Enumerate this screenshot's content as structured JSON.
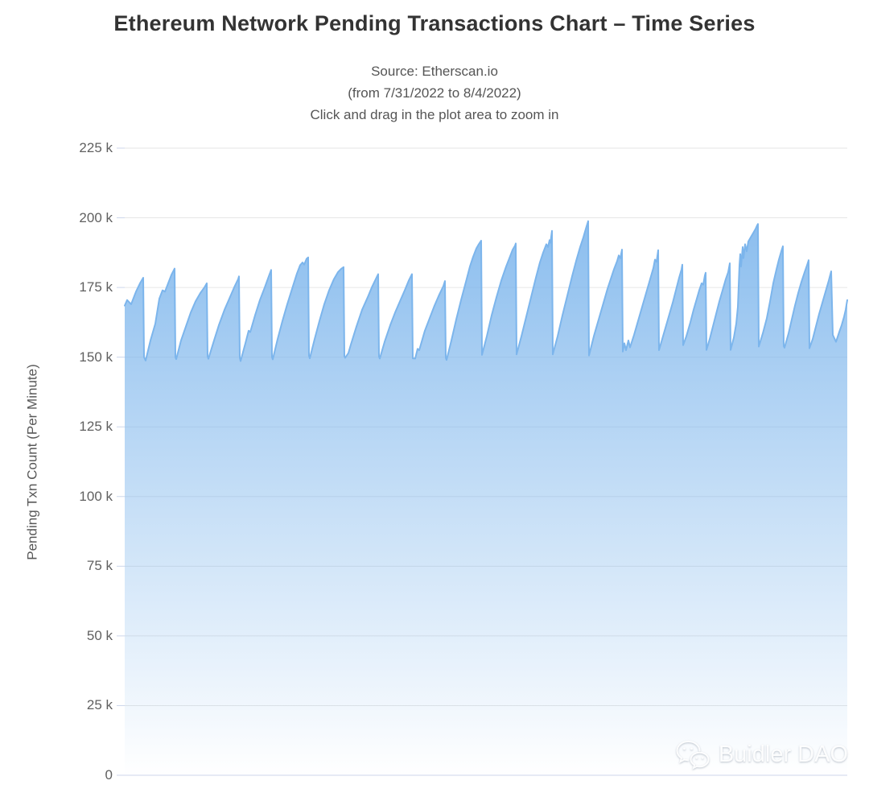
{
  "header": {
    "title": "Ethereum Network Pending Transactions Chart – Time Series",
    "subtitle_lines": [
      "Source: Etherscan.io",
      "(from 7/31/2022 to 8/4/2022)",
      "Click and drag in the plot area to zoom in"
    ]
  },
  "watermark": {
    "label": "Buidler DAO",
    "icon": "wechat-icon"
  },
  "colors": {
    "series": "#7cb5ec",
    "grid": "#e6e6e6",
    "axis_line": "#ccd6eb",
    "tick": "#ccd6eb",
    "title_text": "#333333",
    "subtitle_text": "#555555",
    "label_text": "#606060"
  },
  "chart_data": {
    "type": "area",
    "title": "Ethereum Network Pending Transactions Chart – Time Series",
    "subtitle": "Source: Etherscan.io (from 7/31/2022 to 8/4/2022) Click and drag in the plot area to zoom in",
    "xlabel": "",
    "ylabel": "Pending Txn Count (Per Minute)",
    "x_range": {
      "from": "7/31/2022",
      "to": "8/4/2022"
    },
    "x_unit": "time, axis unlabeled; point x = horizontal plot offset 0-898",
    "y_unit": "thousands of pending transactions",
    "ylim_k": [
      0,
      225
    ],
    "grid": "horizontal",
    "legend": "none",
    "yticks": [
      {
        "v": 0,
        "label": "0"
      },
      {
        "v": 25,
        "label": "25 k"
      },
      {
        "v": 50,
        "label": "50 k"
      },
      {
        "v": 75,
        "label": "75 k"
      },
      {
        "v": 100,
        "label": "100 k"
      },
      {
        "v": 125,
        "label": "125 k"
      },
      {
        "v": 150,
        "label": "150 k"
      },
      {
        "v": 175,
        "label": "175 k"
      },
      {
        "v": 200,
        "label": "200 k"
      },
      {
        "v": 225,
        "label": "225 k"
      }
    ],
    "series": [
      {
        "name": "Pending Txn Count",
        "color": "#7cb5ec",
        "fill_gradient_top": "rgba(124,181,236,1)",
        "fill_gradient_bottom": "rgba(124,181,236,0)",
        "points": [
          [
            0,
            168.5
          ],
          [
            3,
            170.5
          ],
          [
            8,
            169
          ],
          [
            14,
            173.5
          ],
          [
            19,
            176.5
          ],
          [
            23,
            178.5
          ],
          [
            24,
            150
          ],
          [
            26,
            148.8
          ],
          [
            32,
            156
          ],
          [
            38,
            162
          ],
          [
            43,
            171
          ],
          [
            47,
            174
          ],
          [
            50,
            173.5
          ],
          [
            54,
            176.5
          ],
          [
            58,
            179.5
          ],
          [
            62,
            181.8
          ],
          [
            63,
            150
          ],
          [
            64,
            149.3
          ],
          [
            70,
            156
          ],
          [
            76,
            161
          ],
          [
            82,
            166
          ],
          [
            88,
            170
          ],
          [
            94,
            173
          ],
          [
            99,
            175
          ],
          [
            102,
            176.5
          ],
          [
            103,
            150.3
          ],
          [
            104,
            149.4
          ],
          [
            111,
            156
          ],
          [
            117,
            161.5
          ],
          [
            124,
            167
          ],
          [
            130,
            171
          ],
          [
            136,
            175
          ],
          [
            141,
            178
          ],
          [
            142,
            179
          ],
          [
            143,
            149.8
          ],
          [
            144,
            148.6
          ],
          [
            150,
            155
          ],
          [
            154,
            159.5
          ],
          [
            156,
            159
          ],
          [
            162,
            165
          ],
          [
            168,
            170.5
          ],
          [
            174,
            175
          ],
          [
            179,
            179
          ],
          [
            182,
            181.3
          ],
          [
            183,
            150
          ],
          [
            184,
            149.2
          ],
          [
            190,
            156.5
          ],
          [
            196,
            163
          ],
          [
            202,
            169
          ],
          [
            208,
            174.5
          ],
          [
            214,
            180
          ],
          [
            218,
            183
          ],
          [
            221,
            184
          ],
          [
            223,
            183.2
          ],
          [
            226,
            185.3
          ],
          [
            228,
            185.8
          ],
          [
            229,
            150.5
          ],
          [
            230,
            149.6
          ],
          [
            236,
            156.5
          ],
          [
            242,
            163
          ],
          [
            248,
            169
          ],
          [
            254,
            174
          ],
          [
            260,
            178
          ],
          [
            265,
            180.5
          ],
          [
            269,
            181.7
          ],
          [
            272,
            182.3
          ],
          [
            273,
            150.4
          ],
          [
            274,
            149.8
          ],
          [
            278,
            151.5
          ],
          [
            281,
            154.5
          ],
          [
            288,
            161
          ],
          [
            295,
            167
          ],
          [
            302,
            171.5
          ],
          [
            307,
            175
          ],
          [
            312,
            178
          ],
          [
            315,
            179.8
          ],
          [
            316,
            150.2
          ],
          [
            317,
            149.5
          ],
          [
            323,
            155.5
          ],
          [
            330,
            161.5
          ],
          [
            336,
            166
          ],
          [
            342,
            170
          ],
          [
            348,
            174
          ],
          [
            353,
            177.5
          ],
          [
            357,
            179.8
          ],
          [
            358,
            149.6
          ],
          [
            361,
            149.5
          ],
          [
            364,
            153
          ],
          [
            366,
            152.5
          ],
          [
            373,
            159.5
          ],
          [
            379,
            164
          ],
          [
            385,
            168.5
          ],
          [
            391,
            172.5
          ],
          [
            396,
            175.5
          ],
          [
            398,
            177.3
          ],
          [
            399,
            149.8
          ],
          [
            400,
            149
          ],
          [
            406,
            156
          ],
          [
            412,
            163.5
          ],
          [
            418,
            170.5
          ],
          [
            424,
            177
          ],
          [
            429,
            182.5
          ],
          [
            433,
            186
          ],
          [
            437,
            189
          ],
          [
            440,
            190.5
          ],
          [
            443,
            191.8
          ],
          [
            444,
            150.8
          ],
          [
            450,
            157.5
          ],
          [
            456,
            165
          ],
          [
            462,
            171.5
          ],
          [
            468,
            177.5
          ],
          [
            474,
            182.5
          ],
          [
            478,
            185.5
          ],
          [
            482,
            188.5
          ],
          [
            485,
            190
          ],
          [
            486,
            190.8
          ],
          [
            487,
            151
          ],
          [
            493,
            157.5
          ],
          [
            499,
            164.5
          ],
          [
            505,
            171.5
          ],
          [
            511,
            178.5
          ],
          [
            516,
            184
          ],
          [
            520,
            187.5
          ],
          [
            524,
            190.5
          ],
          [
            526,
            189.5
          ],
          [
            528,
            192
          ],
          [
            529,
            191
          ],
          [
            531,
            195.3
          ],
          [
            532,
            151
          ],
          [
            538,
            157.5
          ],
          [
            544,
            165
          ],
          [
            550,
            172
          ],
          [
            556,
            179
          ],
          [
            561,
            184.5
          ],
          [
            566,
            189.5
          ],
          [
            570,
            193
          ],
          [
            573,
            196
          ],
          [
            576,
            198.8
          ],
          [
            577,
            150.6
          ],
          [
            583,
            157.5
          ],
          [
            589,
            163.5
          ],
          [
            595,
            169.5
          ],
          [
            600,
            174.5
          ],
          [
            604,
            178
          ],
          [
            608,
            181.5
          ],
          [
            612,
            184.5
          ],
          [
            614,
            186.5
          ],
          [
            616,
            185.5
          ],
          [
            618,
            188.6
          ],
          [
            619,
            152
          ],
          [
            621,
            155
          ],
          [
            623,
            152.5
          ],
          [
            626,
            156
          ],
          [
            628,
            153.5
          ],
          [
            633,
            158
          ],
          [
            639,
            164
          ],
          [
            645,
            170
          ],
          [
            650,
            175
          ],
          [
            654,
            179
          ],
          [
            657,
            182
          ],
          [
            659,
            185
          ],
          [
            661,
            184.2
          ],
          [
            663,
            188.4
          ],
          [
            664,
            152.5
          ],
          [
            667,
            155.5
          ],
          [
            671,
            159.5
          ],
          [
            676,
            164.5
          ],
          [
            681,
            169.5
          ],
          [
            685,
            174
          ],
          [
            689,
            178.5
          ],
          [
            692,
            181.5
          ],
          [
            693,
            183.2
          ],
          [
            694,
            154.3
          ],
          [
            698,
            157.5
          ],
          [
            703,
            162.5
          ],
          [
            707,
            167
          ],
          [
            711,
            171
          ],
          [
            714,
            174
          ],
          [
            717,
            176.5
          ],
          [
            719,
            176
          ],
          [
            721,
            179.3
          ],
          [
            722,
            180.3
          ],
          [
            723,
            152.6
          ],
          [
            727,
            156.5
          ],
          [
            731,
            161
          ],
          [
            735,
            165.5
          ],
          [
            739,
            170
          ],
          [
            743,
            174
          ],
          [
            747,
            178
          ],
          [
            750,
            180.5
          ],
          [
            752,
            183.7
          ],
          [
            753,
            152.6
          ],
          [
            757,
            157
          ],
          [
            760,
            162
          ],
          [
            762,
            168
          ],
          [
            764,
            183
          ],
          [
            765,
            187
          ],
          [
            766,
            182.5
          ],
          [
            768,
            189.5
          ],
          [
            769,
            185.5
          ],
          [
            771,
            190.5
          ],
          [
            773,
            188
          ],
          [
            775,
            191.5
          ],
          [
            778,
            193
          ],
          [
            781,
            194.5
          ],
          [
            784,
            196
          ],
          [
            786,
            197.3
          ],
          [
            787,
            197.8
          ],
          [
            788,
            153.8
          ],
          [
            793,
            158.5
          ],
          [
            798,
            164
          ],
          [
            802,
            170
          ],
          [
            806,
            176.5
          ],
          [
            810,
            181.5
          ],
          [
            813,
            185
          ],
          [
            816,
            188
          ],
          [
            818,
            189.8
          ],
          [
            819,
            154
          ],
          [
            820,
            153.4
          ],
          [
            825,
            158.5
          ],
          [
            829,
            163.5
          ],
          [
            833,
            168.5
          ],
          [
            837,
            173
          ],
          [
            841,
            177
          ],
          [
            845,
            180.5
          ],
          [
            848,
            183
          ],
          [
            850,
            184.8
          ],
          [
            851,
            153.2
          ],
          [
            855,
            156.5
          ],
          [
            859,
            161
          ],
          [
            863,
            165.5
          ],
          [
            867,
            169.5
          ],
          [
            871,
            173.5
          ],
          [
            875,
            177.5
          ],
          [
            878,
            180.8
          ],
          [
            880,
            158
          ],
          [
            884,
            155.5
          ],
          [
            888,
            159
          ],
          [
            891,
            161.5
          ],
          [
            894,
            164.5
          ],
          [
            896,
            167
          ],
          [
            898,
            170.5
          ]
        ]
      }
    ]
  }
}
